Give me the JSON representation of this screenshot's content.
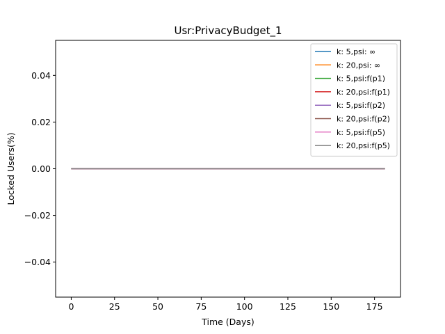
{
  "chart_data": {
    "type": "line",
    "title": "Usr:PrivacyBudget_1",
    "xlabel": "Time (Days)",
    "ylabel": "Locked Users(%)",
    "xlim": [
      -9,
      190
    ],
    "ylim": [
      -0.055,
      0.055
    ],
    "xticks": [
      0,
      25,
      50,
      75,
      100,
      125,
      150,
      175
    ],
    "yticks": [
      -0.04,
      -0.02,
      0.0,
      0.02,
      0.04
    ],
    "ytick_labels": [
      "−0.04",
      "−0.02",
      "0.00",
      "0.02",
      "0.04"
    ],
    "grid": false,
    "legend_position": "top-right",
    "x": [
      0,
      181
    ],
    "series": [
      {
        "name": "k: 5,psi: ∞",
        "color": "#1f77b4",
        "values": [
          0,
          0
        ]
      },
      {
        "name": "k: 20,psi: ∞",
        "color": "#ff7f0e",
        "values": [
          0,
          0
        ]
      },
      {
        "name": "k: 5,psi:f(p1)",
        "color": "#2ca02c",
        "values": [
          0,
          0
        ]
      },
      {
        "name": "k: 20,psi:f(p1)",
        "color": "#d62728",
        "values": [
          0,
          0
        ]
      },
      {
        "name": "k: 5,psi:f(p2)",
        "color": "#9467bd",
        "values": [
          0,
          0
        ]
      },
      {
        "name": "k: 20,psi:f(p2)",
        "color": "#8c564b",
        "values": [
          0,
          0
        ]
      },
      {
        "name": "k: 5,psi:f(p5)",
        "color": "#e377c2",
        "values": [
          0,
          0
        ]
      },
      {
        "name": "k: 20,psi:f(p5)",
        "color": "#7f7f7f",
        "values": [
          0,
          0
        ]
      }
    ]
  }
}
